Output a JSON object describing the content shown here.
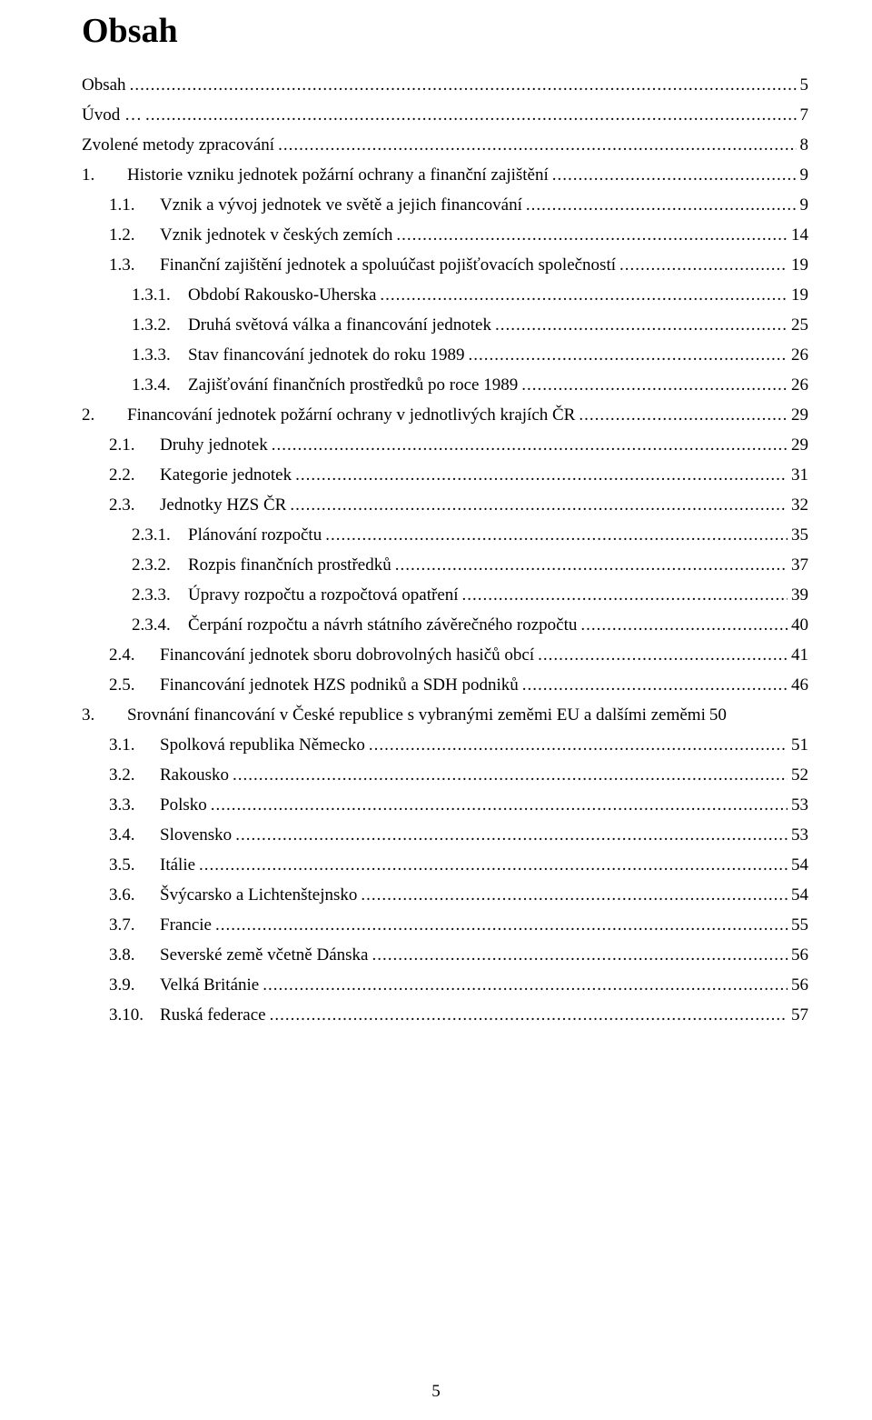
{
  "title": "Obsah",
  "page_number": "5",
  "entries": [
    {
      "indent": 0,
      "num": "",
      "label": "Obsah",
      "page": "5"
    },
    {
      "indent": 0,
      "num": "",
      "label": "Úvod …",
      "page": "7"
    },
    {
      "indent": 0,
      "num": "",
      "label": "Zvolené metody zpracování",
      "page": "8"
    },
    {
      "indent": 1,
      "num": "1.",
      "label": "Historie vzniku jednotek požární ochrany a finanční zajištění",
      "page": "9"
    },
    {
      "indent": 2,
      "num": "1.1.",
      "label": "Vznik a vývoj jednotek ve světě a jejich financování",
      "page": "9"
    },
    {
      "indent": 2,
      "num": "1.2.",
      "label": "Vznik jednotek v českých zemích",
      "page": "14"
    },
    {
      "indent": 2,
      "num": "1.3.",
      "label": "Finanční zajištění jednotek a spoluúčast pojišťovacích společností",
      "page": "19"
    },
    {
      "indent": 3,
      "num": "1.3.1.",
      "label": "Období Rakousko-Uherska",
      "page": "19"
    },
    {
      "indent": 3,
      "num": "1.3.2.",
      "label": "Druhá světová válka a financování jednotek",
      "page": "25"
    },
    {
      "indent": 3,
      "num": "1.3.3.",
      "label": "Stav financování jednotek do roku 1989",
      "page": "26"
    },
    {
      "indent": 3,
      "num": "1.3.4.",
      "label": "Zajišťování finančních prostředků po roce 1989",
      "page": "26"
    },
    {
      "indent": 1,
      "num": "2.",
      "label": "Financování jednotek požární ochrany v jednotlivých krajích ČR",
      "page": "29"
    },
    {
      "indent": 2,
      "num": "2.1.",
      "label": "Druhy jednotek",
      "page": "29"
    },
    {
      "indent": 2,
      "num": "2.2.",
      "label": "Kategorie jednotek",
      "page": "31"
    },
    {
      "indent": 2,
      "num": "2.3.",
      "label": "Jednotky HZS ČR",
      "page": "32"
    },
    {
      "indent": 3,
      "num": "2.3.1.",
      "label": "Plánování rozpočtu",
      "page": "35"
    },
    {
      "indent": 3,
      "num": "2.3.2.",
      "label": "Rozpis finančních prostředků",
      "page": "37"
    },
    {
      "indent": 3,
      "num": "2.3.3.",
      "label": "Úpravy rozpočtu a rozpočtová opatření",
      "page": "39"
    },
    {
      "indent": 3,
      "num": "2.3.4.",
      "label": "Čerpání rozpočtu a návrh státního závěrečného rozpočtu",
      "page": "40"
    },
    {
      "indent": 2,
      "num": "2.4.",
      "label": "Financování jednotek sboru dobrovolných hasičů obcí",
      "page": "41"
    },
    {
      "indent": 2,
      "num": "2.5.",
      "label": "Financování jednotek HZS podniků a SDH podniků",
      "page": "46"
    },
    {
      "indent": 1,
      "num": "3.",
      "label": "Srovnání financování v České republice s vybranými zeměmi EU a dalšími zeměmi",
      "page": "50",
      "noleader": true
    },
    {
      "indent": 2,
      "num": "3.1.",
      "label": "Spolková republika Německo",
      "page": "51"
    },
    {
      "indent": 2,
      "num": "3.2.",
      "label": "Rakousko",
      "page": "52"
    },
    {
      "indent": 2,
      "num": "3.3.",
      "label": "Polsko",
      "page": "53"
    },
    {
      "indent": 2,
      "num": "3.4.",
      "label": "Slovensko",
      "page": "53"
    },
    {
      "indent": 2,
      "num": "3.5.",
      "label": "Itálie",
      "page": "54"
    },
    {
      "indent": 2,
      "num": "3.6.",
      "label": "Švýcarsko a Lichtenštejnsko",
      "page": "54"
    },
    {
      "indent": 2,
      "num": "3.7.",
      "label": "Francie",
      "page": "55"
    },
    {
      "indent": 2,
      "num": "3.8.",
      "label": "Severské země včetně Dánska",
      "page": "56"
    },
    {
      "indent": 2,
      "num": "3.9.",
      "label": "Velká Británie",
      "page": "56"
    },
    {
      "indent": 2,
      "num": "3.10.",
      "label": "Ruská federace",
      "page": "57"
    }
  ]
}
